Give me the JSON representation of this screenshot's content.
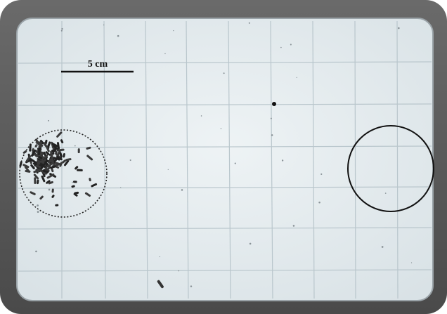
{
  "scale_bar": {
    "label": "5 cm"
  }
}
